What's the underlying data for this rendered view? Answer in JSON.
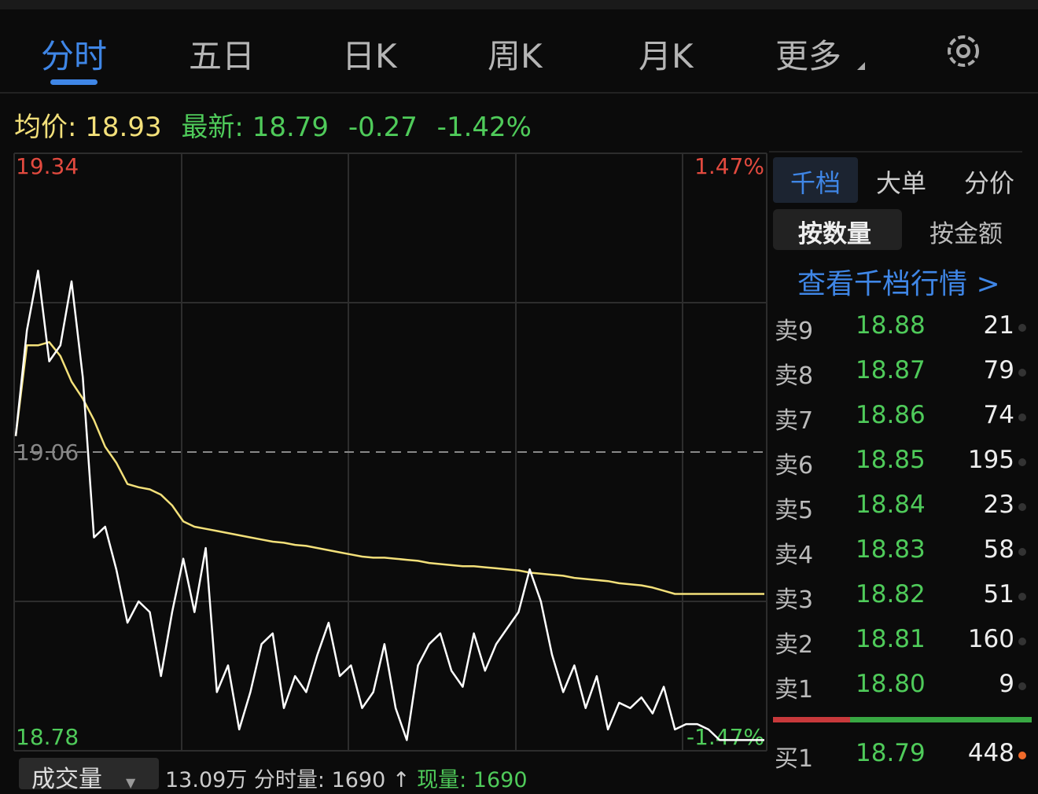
{
  "tabs": [
    "分时",
    "五日",
    "日K",
    "周K",
    "月K",
    "更多"
  ],
  "info": {
    "avg_label": "均价:",
    "avg": "18.93",
    "last_label": "最新:",
    "last": "18.79",
    "change": "-0.27",
    "change_pct": "-1.42%"
  },
  "chart_data": {
    "type": "line",
    "categories": [
      null,
      null,
      null,
      null,
      null,
      null,
      null,
      null,
      null,
      null,
      null,
      null,
      null,
      null,
      null,
      null,
      null,
      null,
      null,
      null,
      null,
      null,
      null,
      null,
      null,
      null,
      null,
      null,
      null,
      null,
      null,
      null,
      null,
      null,
      null,
      null,
      null,
      null,
      null,
      null,
      null,
      null,
      null,
      null,
      null,
      null,
      null,
      null,
      null,
      null,
      null,
      null,
      null,
      null,
      null,
      null,
      null,
      null,
      null,
      null,
      null,
      null,
      null,
      null,
      null,
      null,
      null,
      null
    ],
    "series": [
      {
        "color": "#ffffff",
        "values": [
          19.075,
          19.174,
          19.23,
          19.145,
          19.16,
          19.22,
          19.13,
          18.98,
          18.99,
          18.95,
          18.9,
          18.92,
          18.91,
          18.85,
          18.91,
          18.96,
          18.91,
          18.97,
          18.835,
          18.86,
          18.8,
          18.835,
          18.88,
          18.89,
          18.82,
          18.85,
          18.835,
          18.87,
          18.9,
          18.85,
          18.86,
          18.82,
          18.835,
          18.88,
          18.82,
          18.79,
          18.86,
          18.88,
          18.89,
          18.855,
          18.84,
          18.89,
          18.855,
          18.88,
          18.895,
          18.91,
          18.95,
          18.92,
          18.87,
          18.835,
          18.86,
          18.82,
          18.85,
          18.8,
          18.825,
          18.82,
          18.83,
          18.815,
          18.84,
          18.8,
          18.805,
          18.805,
          18.8,
          18.79,
          18.79,
          18.79,
          18.79,
          18.79
        ]
      },
      {
        "color": "#f3e07a",
        "values": [
          19.075,
          19.16,
          19.16,
          19.163,
          19.15,
          19.126,
          19.11,
          19.09,
          19.065,
          19.05,
          19.03,
          19.027,
          19.025,
          19.02,
          19.01,
          18.995,
          18.99,
          18.988,
          18.986,
          18.984,
          18.982,
          18.98,
          18.978,
          18.976,
          18.975,
          18.973,
          18.972,
          18.97,
          18.968,
          18.966,
          18.964,
          18.962,
          18.961,
          18.961,
          18.96,
          18.959,
          18.958,
          18.956,
          18.955,
          18.954,
          18.953,
          18.953,
          18.952,
          18.951,
          18.95,
          18.949,
          18.947,
          18.946,
          18.945,
          18.944,
          18.942,
          18.941,
          18.94,
          18.939,
          18.937,
          18.936,
          18.935,
          18.933,
          18.93,
          18.927,
          18.927,
          18.927,
          18.927,
          18.927,
          18.927,
          18.927,
          18.927,
          18.927
        ]
      }
    ],
    "ylim": [
      18.78,
      19.34
    ],
    "yticks": [
      19.34,
      19.06,
      18.78
    ],
    "y2lim": [
      -1.47,
      1.47
    ],
    "y2ticks": [
      {
        "value": 1.47,
        "label": "1.47%"
      },
      {
        "value": -1.47,
        "label": "-1.47%"
      }
    ]
  },
  "panel": {
    "tabs": [
      "千档",
      "大单",
      "分价"
    ],
    "sub_tabs": [
      "按数量",
      "按金额"
    ],
    "link": "查看千档行情 >"
  },
  "order_book": {
    "sell": [
      [
        "卖9",
        "18.88",
        "21"
      ],
      [
        "卖8",
        "18.87",
        "79"
      ],
      [
        "卖7",
        "18.86",
        "74"
      ],
      [
        "卖6",
        "18.85",
        "195"
      ],
      [
        "卖5",
        "18.84",
        "23"
      ],
      [
        "卖4",
        "18.83",
        "58"
      ],
      [
        "卖3",
        "18.82",
        "51"
      ],
      [
        "卖2",
        "18.81",
        "160"
      ],
      [
        "卖1",
        "18.80",
        "9"
      ]
    ],
    "buy": [
      [
        "买1",
        "18.79",
        "448"
      ]
    ]
  },
  "volume_bar": {
    "selector": "成交量",
    "total": "13.09万",
    "minute_label": "分时量: 1690",
    "arrow": "↑",
    "current": "现量: 1690"
  }
}
